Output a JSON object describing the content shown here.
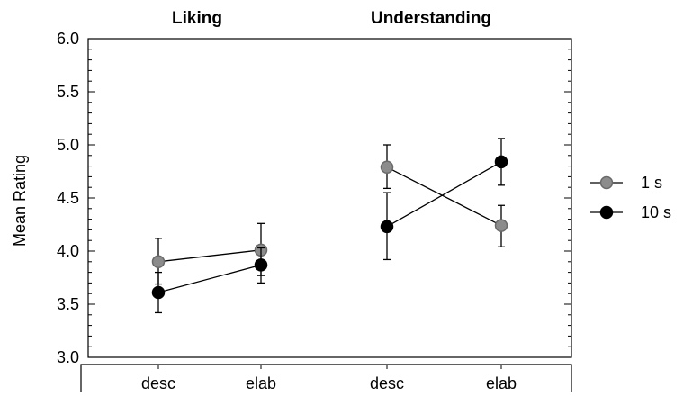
{
  "chart_data": {
    "type": "line",
    "ylabel": "Mean Rating",
    "ylim": [
      3.0,
      6.0
    ],
    "yticks": [
      "3.0",
      "3.5",
      "4.0",
      "4.5",
      "5.0",
      "5.5",
      "6.0"
    ],
    "groups": [
      {
        "title": "Liking",
        "categories": [
          "desc",
          "elab"
        ]
      },
      {
        "title": "Understanding",
        "categories": [
          "desc",
          "elab"
        ]
      }
    ],
    "series": [
      {
        "name": "1 s",
        "color": "#8c8c8c",
        "points": [
          {
            "group": 0,
            "category": 0,
            "value": 3.9,
            "err_low": 3.69,
            "err_high": 4.12
          },
          {
            "group": 0,
            "category": 1,
            "value": 4.01,
            "err_low": 3.77,
            "err_high": 4.26
          },
          {
            "group": 1,
            "category": 0,
            "value": 4.79,
            "err_low": 4.59,
            "err_high": 5.0
          },
          {
            "group": 1,
            "category": 1,
            "value": 4.24,
            "err_low": 4.04,
            "err_high": 4.43
          }
        ]
      },
      {
        "name": "10 s",
        "color": "#000000",
        "points": [
          {
            "group": 0,
            "category": 0,
            "value": 3.61,
            "err_low": 3.42,
            "err_high": 3.8
          },
          {
            "group": 0,
            "category": 1,
            "value": 3.87,
            "err_low": 3.7,
            "err_high": 4.03
          },
          {
            "group": 1,
            "category": 0,
            "value": 4.23,
            "err_low": 3.92,
            "err_high": 4.55
          },
          {
            "group": 1,
            "category": 1,
            "value": 4.84,
            "err_low": 4.62,
            "err_high": 5.06
          }
        ]
      }
    ],
    "legend": "right",
    "grid": false
  }
}
